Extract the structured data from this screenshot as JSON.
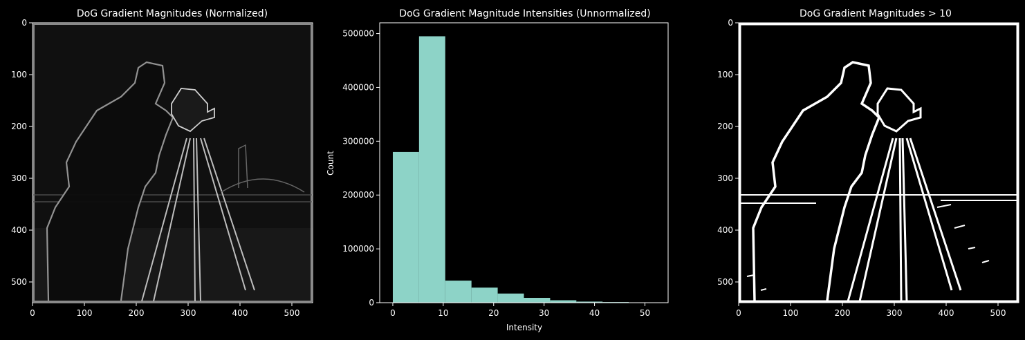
{
  "colors": {
    "background": "#000000",
    "bar": "#8dd3c7",
    "text": "#ffffff"
  },
  "chart_data": [
    {
      "type": "heatmap",
      "title": "DoG Gradient Magnitudes (Normalized)",
      "description_kind": "grayscale image (cameraman gradient magnitudes)",
      "xlim": [
        0,
        540
      ],
      "ylim": [
        540,
        0
      ],
      "x_ticks": [
        "0",
        "100",
        "200",
        "300",
        "400",
        "500"
      ],
      "y_ticks": [
        "0",
        "100",
        "200",
        "300",
        "400",
        "500"
      ],
      "colormap": "gray"
    },
    {
      "type": "bar",
      "title": "DoG Gradient Magnitude Intensities (Unnormalized)",
      "xlabel": "Intensity",
      "ylabel": "Count",
      "bin_edges": [
        0,
        5.2,
        10.4,
        15.6,
        20.8,
        26.0,
        31.2,
        36.4,
        41.6,
        46.8,
        52.0
      ],
      "values": [
        280000,
        495000,
        41000,
        28000,
        17000,
        9000,
        4500,
        2000,
        1200,
        500
      ],
      "xlim": [
        -2.6,
        54.6
      ],
      "ylim": [
        0,
        520000
      ],
      "x_ticks": [
        "0",
        "10",
        "20",
        "30",
        "40",
        "50"
      ],
      "y_ticks": [
        "0",
        "100000",
        "200000",
        "300000",
        "400000",
        "500000"
      ]
    },
    {
      "type": "heatmap",
      "title": "DoG Gradient Magnitudes $>10$",
      "title_display": "DoG Gradient Magnitudes  > 10",
      "description_kind": "binary thresholded edge map",
      "xlim": [
        0,
        540
      ],
      "ylim": [
        540,
        0
      ],
      "x_ticks": [
        "0",
        "100",
        "200",
        "300",
        "400",
        "500"
      ],
      "y_ticks": [
        "0",
        "100",
        "200",
        "300",
        "400",
        "500"
      ],
      "colormap": "gray"
    }
  ]
}
